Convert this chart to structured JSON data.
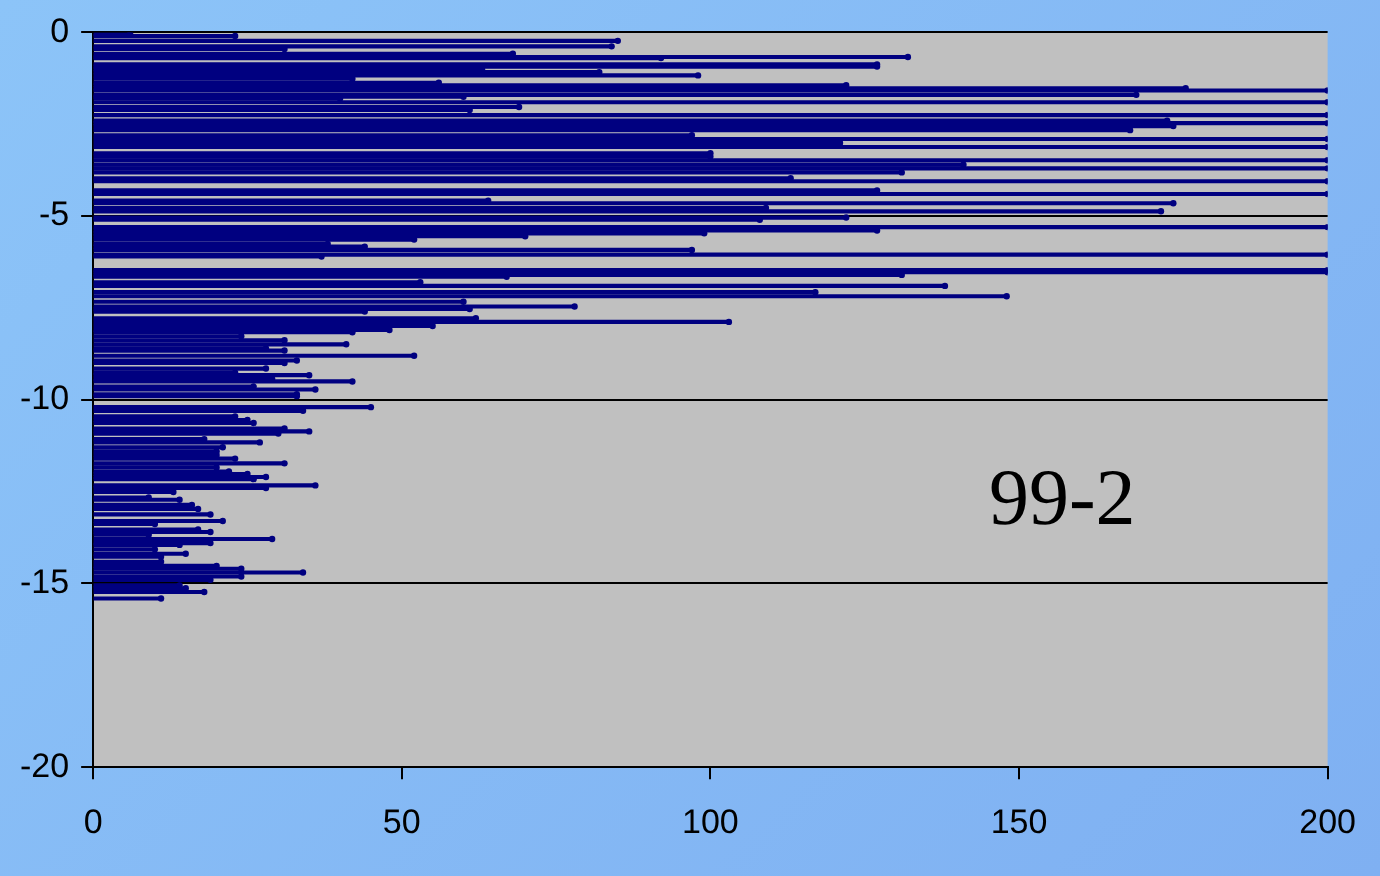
{
  "chart_data": {
    "type": "lollipop",
    "orientation": "horizontal",
    "color": "#000080",
    "marker": "circle",
    "grid": "y",
    "x": [
      -0.05,
      -0.1,
      -0.23,
      -0.38,
      -0.45,
      -0.58,
      -0.67,
      -0.7,
      -0.87,
      -0.93,
      -1.0,
      -1.08,
      -1.17,
      -1.26,
      -1.37,
      -1.44,
      -1.52,
      -1.58,
      -1.7,
      -1.75,
      -1.8,
      -1.9,
      -2.03,
      -2.11,
      -2.25,
      -2.4,
      -2.47,
      -2.55,
      -2.66,
      -2.8,
      -2.9,
      -3.01,
      -3.12,
      -3.29,
      -3.38,
      -3.48,
      -3.6,
      -3.7,
      -3.81,
      -3.97,
      -4.05,
      -4.3,
      -4.4,
      -4.58,
      -4.65,
      -4.78,
      -4.87,
      -5.04,
      -5.1,
      -5.3,
      -5.39,
      -5.47,
      -5.55,
      -5.64,
      -5.76,
      -5.83,
      -5.92,
      -6.05,
      -6.1,
      -6.47,
      -6.53,
      -6.6,
      -6.65,
      -6.8,
      -6.9,
      -7.07,
      -7.18,
      -7.33,
      -7.46,
      -7.53,
      -7.6,
      -7.78,
      -7.88,
      -7.99,
      -8.1,
      -8.16,
      -8.27,
      -8.38,
      -8.49,
      -8.6,
      -8.66,
      -8.8,
      -8.93,
      -9.0,
      -9.15,
      -9.26,
      -9.33,
      -9.43,
      -9.5,
      -9.64,
      -9.72,
      -9.85,
      -9.9,
      -10.2,
      -10.3,
      -10.45,
      -10.55,
      -10.63,
      -10.78,
      -10.86,
      -10.92,
      -11.07,
      -11.16,
      -11.29,
      -11.4,
      -11.5,
      -11.6,
      -11.73,
      -11.84,
      -11.95,
      -12.02,
      -12.1,
      -12.16,
      -12.33,
      -12.4,
      -12.51,
      -12.66,
      -12.72,
      -12.86,
      -12.97,
      -13.12,
      -13.3,
      -13.38,
      -13.53,
      -13.6,
      -13.67,
      -13.79,
      -13.9,
      -13.95,
      -14.07,
      -14.19,
      -14.27,
      -14.41,
      -14.52,
      -14.6,
      -14.7,
      -14.81,
      -14.9,
      -15.05,
      -15.13,
      -15.23,
      -15.41
    ],
    "values": [
      6,
      23,
      85,
      84,
      31,
      68,
      132,
      92,
      127,
      127,
      63,
      82,
      98,
      42,
      56,
      122,
      177,
      200,
      169,
      60,
      40,
      200,
      69,
      61,
      200,
      174,
      200,
      175,
      168,
      97,
      200,
      121,
      200,
      100,
      100,
      200,
      141,
      200,
      131,
      113,
      200,
      127,
      200,
      64,
      175,
      109,
      173,
      122,
      108,
      200,
      127,
      99,
      70,
      52,
      38,
      44,
      97,
      200,
      37,
      200,
      200,
      131,
      67,
      53,
      138,
      117,
      148,
      60,
      78,
      61,
      44,
      62,
      103,
      55,
      48,
      42,
      24,
      31,
      41,
      28,
      31,
      52,
      33,
      31,
      28,
      23,
      35,
      29,
      42,
      26,
      36,
      33,
      33,
      45,
      34,
      23,
      25,
      26,
      31,
      35,
      30,
      18,
      27,
      21,
      20,
      20,
      23,
      31,
      20,
      22,
      25,
      28,
      26,
      36,
      28,
      13,
      9,
      14,
      16,
      17,
      19,
      21,
      10,
      17,
      19,
      9,
      29,
      19,
      14,
      10,
      15,
      11,
      11,
      20,
      24,
      34,
      24,
      19,
      14,
      15,
      18,
      11
    ],
    "xlim": [
      0,
      200
    ],
    "xticks": [
      0,
      50,
      100,
      150,
      200
    ],
    "ylim": [
      -20,
      0
    ],
    "yticks": [
      0,
      -5,
      -10,
      -15,
      -20
    ],
    "annotations": [
      "99-2"
    ]
  }
}
